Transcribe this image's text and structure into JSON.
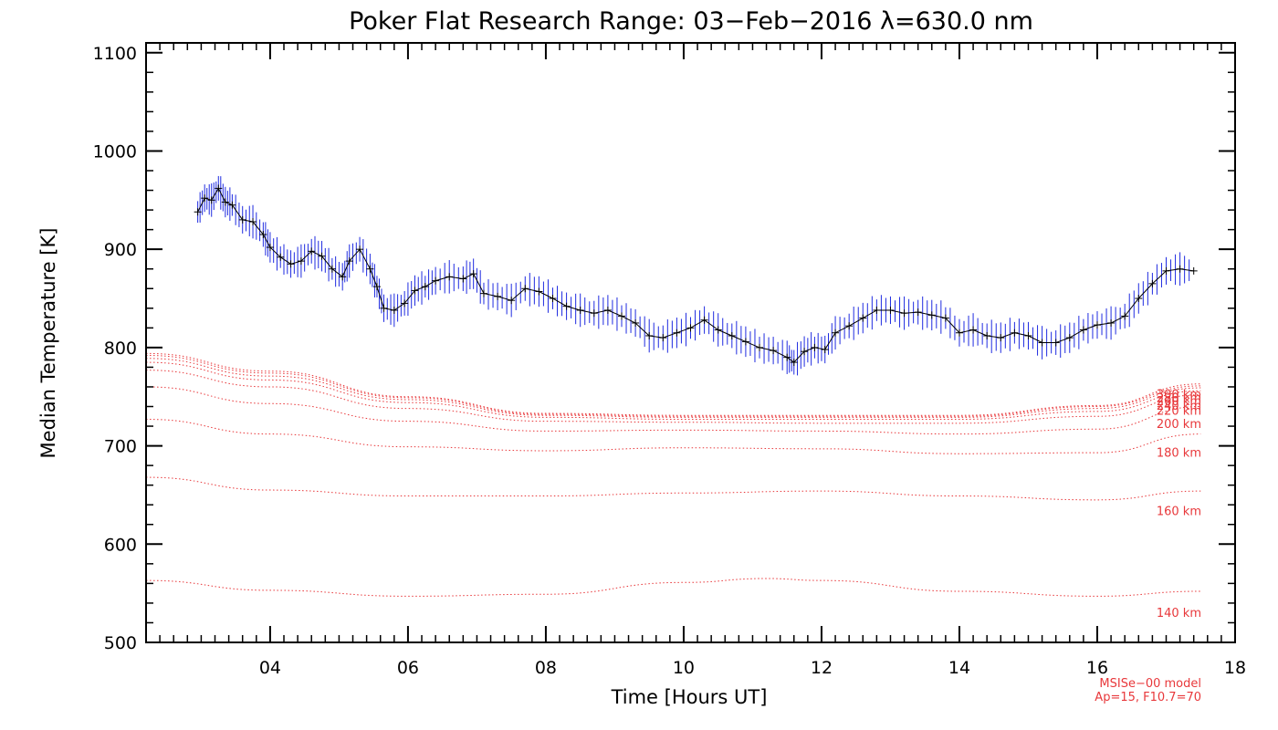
{
  "chart_data": {
    "type": "line",
    "title": "Poker Flat Research Range: 03−Feb−2016 λ=630.0 nm",
    "xlabel": "Time [Hours UT]",
    "ylabel": "Median Temperature [K]",
    "xlim": [
      2.2,
      18.0
    ],
    "ylim": [
      500,
      1110
    ],
    "xticks": [
      4,
      6,
      8,
      10,
      12,
      14,
      16,
      18
    ],
    "xtick_labels": [
      "04",
      "06",
      "08",
      "10",
      "12",
      "14",
      "16",
      "18"
    ],
    "yticks": [
      500,
      600,
      700,
      800,
      900,
      1000,
      1100
    ],
    "ytick_labels": [
      "500",
      "600",
      "700",
      "800",
      "900",
      "1000",
      "1100"
    ],
    "grid": false,
    "series": [
      {
        "name": "Median Temperature",
        "color": "#000000",
        "errorbar_color": "#1f2be0",
        "error": 14,
        "points": [
          [
            2.95,
            938
          ],
          [
            3.05,
            952
          ],
          [
            3.15,
            950
          ],
          [
            3.25,
            962
          ],
          [
            3.35,
            948
          ],
          [
            3.45,
            945
          ],
          [
            3.6,
            930
          ],
          [
            3.75,
            928
          ],
          [
            3.9,
            915
          ],
          [
            4.0,
            902
          ],
          [
            4.15,
            892
          ],
          [
            4.3,
            885
          ],
          [
            4.45,
            888
          ],
          [
            4.6,
            898
          ],
          [
            4.75,
            893
          ],
          [
            4.9,
            880
          ],
          [
            5.05,
            872
          ],
          [
            5.15,
            888
          ],
          [
            5.3,
            900
          ],
          [
            5.45,
            880
          ],
          [
            5.55,
            862
          ],
          [
            5.65,
            840
          ],
          [
            5.8,
            838
          ],
          [
            5.95,
            845
          ],
          [
            6.1,
            858
          ],
          [
            6.25,
            862
          ],
          [
            6.4,
            868
          ],
          [
            6.6,
            872
          ],
          [
            6.8,
            870
          ],
          [
            6.95,
            875
          ],
          [
            7.1,
            855
          ],
          [
            7.3,
            852
          ],
          [
            7.5,
            848
          ],
          [
            7.7,
            860
          ],
          [
            7.9,
            857
          ],
          [
            8.1,
            850
          ],
          [
            8.3,
            842
          ],
          [
            8.5,
            838
          ],
          [
            8.7,
            835
          ],
          [
            8.9,
            838
          ],
          [
            9.1,
            832
          ],
          [
            9.3,
            825
          ],
          [
            9.5,
            812
          ],
          [
            9.7,
            810
          ],
          [
            9.9,
            815
          ],
          [
            10.1,
            820
          ],
          [
            10.3,
            828
          ],
          [
            10.5,
            818
          ],
          [
            10.7,
            812
          ],
          [
            10.9,
            806
          ],
          [
            11.1,
            800
          ],
          [
            11.3,
            797
          ],
          [
            11.5,
            790
          ],
          [
            11.6,
            785
          ],
          [
            11.75,
            796
          ],
          [
            11.9,
            800
          ],
          [
            12.05,
            798
          ],
          [
            12.2,
            815
          ],
          [
            12.4,
            822
          ],
          [
            12.6,
            830
          ],
          [
            12.8,
            838
          ],
          [
            13.0,
            838
          ],
          [
            13.2,
            835
          ],
          [
            13.4,
            836
          ],
          [
            13.6,
            833
          ],
          [
            13.8,
            830
          ],
          [
            14.0,
            815
          ],
          [
            14.2,
            818
          ],
          [
            14.4,
            812
          ],
          [
            14.6,
            810
          ],
          [
            14.8,
            815
          ],
          [
            15.0,
            812
          ],
          [
            15.2,
            805
          ],
          [
            15.4,
            805
          ],
          [
            15.6,
            810
          ],
          [
            15.8,
            818
          ],
          [
            16.0,
            823
          ],
          [
            16.2,
            825
          ],
          [
            16.4,
            832
          ],
          [
            16.6,
            850
          ],
          [
            16.8,
            865
          ],
          [
            17.0,
            878
          ],
          [
            17.2,
            880
          ],
          [
            17.4,
            878
          ]
        ]
      }
    ],
    "model_series": [
      {
        "name": "140 km",
        "label": "140 km",
        "x": [
          2.2,
          4.0,
          6.0,
          8.0,
          10.0,
          11.2,
          12.0,
          14.0,
          16.0,
          17.5
        ],
        "values": [
          563,
          553,
          547,
          549,
          561,
          565,
          563,
          552,
          547,
          552
        ]
      },
      {
        "name": "160 km",
        "label": "160 km",
        "x": [
          2.2,
          4.0,
          6.0,
          8.0,
          10.0,
          12.0,
          14.0,
          16.0,
          17.5
        ],
        "values": [
          668,
          655,
          649,
          649,
          652,
          654,
          649,
          645,
          654
        ]
      },
      {
        "name": "180 km",
        "label": "180 km",
        "x": [
          2.2,
          4.0,
          6.0,
          8.0,
          10.0,
          12.0,
          14.0,
          16.0,
          17.5
        ],
        "values": [
          727,
          712,
          699,
          695,
          698,
          697,
          692,
          693,
          712
        ]
      },
      {
        "name": "200 km",
        "label": "200 km",
        "x": [
          2.2,
          4.0,
          6.0,
          8.0,
          10.0,
          12.0,
          14.0,
          16.0,
          17.5
        ],
        "values": [
          760,
          743,
          725,
          715,
          716,
          715,
          712,
          717,
          740
        ]
      },
      {
        "name": "220 km",
        "label": "220 km",
        "x": [
          2.2,
          4.0,
          6.0,
          8.0,
          10.0,
          12.0,
          14.0,
          16.0,
          17.5
        ],
        "values": [
          777,
          760,
          738,
          725,
          724,
          723,
          723,
          730,
          752
        ]
      },
      {
        "name": "240 km",
        "label": "240 km",
        "x": [
          2.2,
          4.0,
          6.0,
          8.0,
          10.0,
          12.0,
          14.0,
          16.0,
          17.5
        ],
        "values": [
          785,
          767,
          744,
          729,
          727,
          727,
          727,
          735,
          756
        ]
      },
      {
        "name": "260 km",
        "label": "260 km",
        "x": [
          2.2,
          4.0,
          6.0,
          8.0,
          10.0,
          12.0,
          14.0,
          16.0,
          17.5
        ],
        "values": [
          789,
          771,
          747,
          731,
          729,
          729,
          729,
          738,
          759
        ]
      },
      {
        "name": "280 km",
        "label": "280 km",
        "x": [
          2.2,
          4.0,
          6.0,
          8.0,
          10.0,
          12.0,
          14.0,
          16.0,
          17.5
        ],
        "values": [
          792,
          774,
          749,
          732,
          730,
          730,
          730,
          740,
          761
        ]
      },
      {
        "name": "300 km",
        "label": "300 km",
        "x": [
          2.2,
          4.0,
          6.0,
          8.0,
          10.0,
          12.0,
          14.0,
          16.0,
          17.5
        ],
        "values": [
          794,
          776,
          750,
          733,
          731,
          731,
          731,
          741,
          763
        ]
      }
    ],
    "model_color": "#e8383b",
    "annotations": [
      "MSISe−00 model",
      "Ap=15, F10.7=70"
    ]
  }
}
